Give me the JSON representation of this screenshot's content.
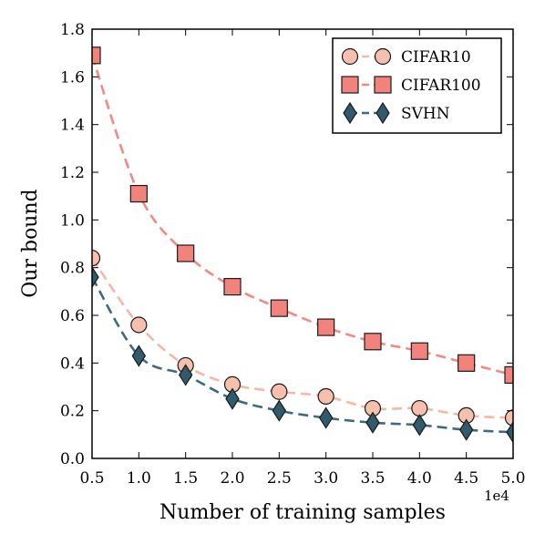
{
  "chart_data": {
    "type": "line",
    "xlabel": "Number of training samples",
    "ylabel": "Our bound",
    "x_offset_label": "1e4",
    "xlim": [
      0.5,
      5.0
    ],
    "ylim": [
      0.0,
      1.8
    ],
    "x_ticks": [
      "0.5",
      "1.0",
      "1.5",
      "2.0",
      "2.5",
      "3.0",
      "3.5",
      "4.0",
      "4.5",
      "5.0"
    ],
    "y_ticks": [
      "0.0",
      "0.2",
      "0.4",
      "0.6",
      "0.8",
      "1.0",
      "1.2",
      "1.4",
      "1.6",
      "1.8"
    ],
    "x": [
      0.5,
      1.0,
      1.5,
      2.0,
      2.5,
      3.0,
      3.5,
      4.0,
      4.5,
      5.0
    ],
    "legend_position": "top-right",
    "grid": false,
    "series": [
      {
        "name": "CIFAR10",
        "marker": "circle",
        "line_color": "#f4b8a4",
        "marker_fill": "#f6bfae",
        "values": [
          0.84,
          0.56,
          0.39,
          0.31,
          0.28,
          0.26,
          0.21,
          0.21,
          0.18,
          0.17
        ]
      },
      {
        "name": "CIFAR100",
        "marker": "square",
        "line_color": "#f08b84",
        "marker_fill": "#f2827c",
        "values": [
          1.69,
          1.11,
          0.86,
          0.72,
          0.63,
          0.55,
          0.49,
          0.45,
          0.4,
          0.35
        ]
      },
      {
        "name": "SVHN",
        "marker": "diamond",
        "line_color": "#3d6a7c",
        "marker_fill": "#2f5b6d",
        "values": [
          0.76,
          0.43,
          0.35,
          0.25,
          0.2,
          0.17,
          0.15,
          0.14,
          0.12,
          0.11
        ]
      }
    ]
  }
}
